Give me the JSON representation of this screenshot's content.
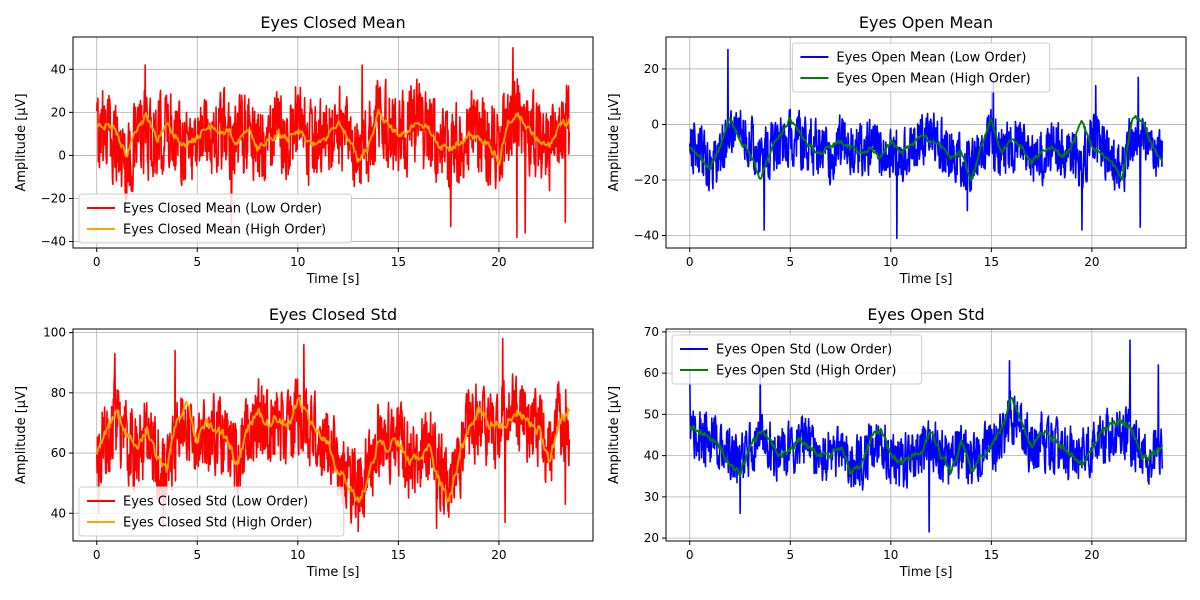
{
  "figure": {
    "background": "#ffffff",
    "grid_color": "#b0b0b0"
  },
  "chart_data": [
    {
      "id": "ec_mean",
      "type": "line",
      "title": "Eyes Closed Mean",
      "xlabel": "Time [s]",
      "ylabel": "Amplitude [µV]",
      "xlim": [
        -1.18,
        24.68
      ],
      "ylim": [
        -43,
        55
      ],
      "xticks": [
        0,
        5,
        10,
        15,
        20
      ],
      "yticks": [
        -40,
        -20,
        0,
        20,
        40
      ],
      "grid": true,
      "legend_position": "lower-left",
      "series": [
        {
          "name": "Eyes Closed Mean (Low Order)",
          "color": "#ff0000",
          "kind": "low",
          "x": [
            0,
            0.5,
            1,
            1.5,
            2,
            2.5,
            3,
            3.5,
            4,
            4.5,
            5,
            5.5,
            6,
            6.5,
            7,
            7.5,
            8,
            8.5,
            9,
            9.5,
            10,
            10.5,
            11,
            11.5,
            12,
            12.5,
            13,
            13.5,
            14,
            14.5,
            15,
            15.5,
            16,
            16.5,
            17,
            17.5,
            18,
            18.5,
            19,
            19.5,
            20,
            20.5,
            21,
            21.5,
            22,
            22.5,
            23,
            23.5
          ],
          "y": [
            10,
            12,
            6,
            -4,
            8,
            10,
            5,
            13,
            10,
            6,
            8,
            12,
            8,
            11,
            6,
            12,
            5,
            8,
            10,
            9,
            13,
            4,
            5,
            8,
            14,
            6,
            -5,
            5,
            18,
            12,
            10,
            12,
            14,
            12,
            5,
            -1,
            6,
            10,
            8,
            4,
            6,
            14,
            18,
            10,
            8,
            2,
            12,
            14
          ],
          "amp": 24,
          "extremes": [
            [
              0.3,
              30
            ],
            [
              2.4,
              42
            ],
            [
              6.7,
              -34
            ],
            [
              13.2,
              42
            ],
            [
              17.6,
              -33
            ],
            [
              20.7,
              50
            ],
            [
              20.9,
              -38
            ],
            [
              21.3,
              -36
            ],
            [
              23.3,
              -31
            ]
          ]
        },
        {
          "name": "Eyes Closed Mean (High Order)",
          "color": "#ffa500",
          "kind": "high",
          "x": [
            0,
            0.5,
            1,
            1.5,
            2,
            2.5,
            3,
            3.5,
            4,
            4.5,
            5,
            5.5,
            6,
            6.5,
            7,
            7.5,
            8,
            8.5,
            9,
            9.5,
            10,
            10.5,
            11,
            11.5,
            12,
            12.5,
            13,
            13.5,
            14,
            14.5,
            15,
            15.5,
            16,
            16.5,
            17,
            17.5,
            18,
            18.5,
            19,
            19.5,
            20,
            20.5,
            21,
            21.5,
            22,
            22.5,
            23,
            23.5
          ],
          "y": [
            12,
            15,
            10,
            0,
            12,
            18,
            7,
            14,
            8,
            5,
            8,
            14,
            10,
            12,
            6,
            12,
            3,
            7,
            10,
            8,
            12,
            6,
            4,
            10,
            16,
            8,
            -2,
            4,
            20,
            14,
            10,
            12,
            15,
            12,
            5,
            2,
            6,
            10,
            8,
            5,
            -3,
            16,
            18,
            12,
            6,
            4,
            14,
            16
          ],
          "amp": 3
        }
      ]
    },
    {
      "id": "eo_mean",
      "type": "line",
      "title": "Eyes Open Mean",
      "xlabel": "Time [s]",
      "ylabel": "Amplitude [µV]",
      "xlim": [
        -1.18,
        24.68
      ],
      "ylim": [
        -44.5,
        31.5
      ],
      "xticks": [
        0,
        5,
        10,
        15,
        20
      ],
      "yticks": [
        -40,
        -20,
        0,
        20
      ],
      "grid": true,
      "legend_position": "top-center",
      "series": [
        {
          "name": "Eyes Open Mean (Low Order)",
          "color": "#0000ff",
          "kind": "low",
          "x": [
            0,
            0.5,
            1,
            1.5,
            2,
            2.5,
            3,
            3.5,
            4,
            4.5,
            5,
            5.5,
            6,
            6.5,
            7,
            7.5,
            8,
            8.5,
            9,
            9.5,
            10,
            10.5,
            11,
            11.5,
            12,
            12.5,
            13,
            13.5,
            14,
            14.5,
            15,
            15.5,
            16,
            16.5,
            17,
            17.5,
            18,
            18.5,
            19,
            19.5,
            20,
            20.5,
            21,
            21.5,
            22,
            22.5,
            23,
            23.5
          ],
          "y": [
            -8,
            -10,
            -14,
            -12,
            -4,
            -2,
            -6,
            -12,
            -10,
            -6,
            -4,
            -6,
            -8,
            -10,
            -12,
            -6,
            -8,
            -10,
            -8,
            -10,
            -10,
            -12,
            -8,
            -6,
            -4,
            -8,
            -10,
            -12,
            -16,
            -10,
            -6,
            -10,
            -6,
            -8,
            -10,
            -12,
            -8,
            -10,
            -10,
            -14,
            -4,
            -10,
            -14,
            -18,
            -4,
            -6,
            -10,
            -12
          ],
          "amp": 12,
          "extremes": [
            [
              1.9,
              27
            ],
            [
              3.7,
              -38
            ],
            [
              10.3,
              -41
            ],
            [
              13.8,
              -31
            ],
            [
              15.1,
              16
            ],
            [
              19.5,
              -38
            ],
            [
              20.2,
              14
            ],
            [
              22.3,
              17
            ],
            [
              22.4,
              -37
            ]
          ]
        },
        {
          "name": "Eyes Open Mean (High Order)",
          "color": "#008000",
          "kind": "high",
          "x": [
            0,
            0.5,
            1,
            1.5,
            2,
            2.5,
            3,
            3.5,
            4,
            4.5,
            5,
            5.5,
            6,
            6.5,
            7,
            7.5,
            8,
            8.5,
            9,
            9.5,
            10,
            10.5,
            11,
            11.5,
            12,
            12.5,
            13,
            13.5,
            14,
            14.5,
            15,
            15.5,
            16,
            16.5,
            17,
            17.5,
            18,
            18.5,
            19,
            19.5,
            20,
            20.5,
            21,
            21.5,
            22,
            22.5,
            23,
            23.5
          ],
          "y": [
            -8,
            -12,
            -16,
            -8,
            2,
            -6,
            -10,
            -20,
            -10,
            -4,
            2,
            -4,
            -8,
            -10,
            -8,
            -6,
            -8,
            -10,
            -8,
            -12,
            -6,
            -10,
            -8,
            -4,
            -6,
            -8,
            -12,
            -10,
            -20,
            -8,
            2,
            -10,
            -6,
            -8,
            -14,
            -10,
            -8,
            -12,
            -8,
            2,
            -8,
            -10,
            -14,
            -20,
            2,
            2,
            -8,
            -14
          ],
          "amp": 1.5
        }
      ]
    },
    {
      "id": "ec_std",
      "type": "line",
      "title": "Eyes Closed Std",
      "xlabel": "Time [s]",
      "ylabel": "Amplitude [µV]",
      "xlim": [
        -1.18,
        24.68
      ],
      "ylim": [
        30.8,
        101.2
      ],
      "xticks": [
        0,
        5,
        10,
        15,
        20
      ],
      "yticks": [
        40,
        60,
        80,
        100
      ],
      "grid": true,
      "legend_position": "lower-left",
      "series": [
        {
          "name": "Eyes Closed Std (Low Order)",
          "color": "#ff0000",
          "kind": "low",
          "x": [
            0,
            0.5,
            1,
            1.5,
            2,
            2.5,
            3,
            3.5,
            4,
            4.5,
            5,
            5.5,
            6,
            6.5,
            7,
            7.5,
            8,
            8.5,
            9,
            9.5,
            10,
            10.5,
            11,
            11.5,
            12,
            12.5,
            13,
            13.5,
            14,
            14.5,
            15,
            15.5,
            16,
            16.5,
            17,
            17.5,
            18,
            18.5,
            19,
            19.5,
            20,
            20.5,
            21,
            21.5,
            22,
            22.5,
            23,
            23.5
          ],
          "y": [
            60,
            66,
            72,
            64,
            58,
            66,
            58,
            52,
            66,
            70,
            62,
            68,
            66,
            62,
            58,
            66,
            72,
            68,
            70,
            66,
            74,
            70,
            66,
            62,
            56,
            52,
            48,
            54,
            66,
            64,
            64,
            58,
            60,
            62,
            56,
            48,
            58,
            68,
            72,
            66,
            70,
            74,
            72,
            68,
            66,
            60,
            72,
            70
          ],
          "amp": 16,
          "extremes": [
            [
              0.1,
              40
            ],
            [
              0.9,
              93
            ],
            [
              3.3,
              36
            ],
            [
              3.9,
              94
            ],
            [
              10.3,
              96
            ],
            [
              13.0,
              34
            ],
            [
              16.9,
              35
            ],
            [
              20.2,
              98
            ],
            [
              20.3,
              37
            ],
            [
              23.3,
              43
            ]
          ]
        },
        {
          "name": "Eyes Closed Std (High Order)",
          "color": "#ffa500",
          "kind": "high",
          "x": [
            0,
            0.5,
            1,
            1.5,
            2,
            2.5,
            3,
            3.5,
            4,
            4.5,
            5,
            5.5,
            6,
            6.5,
            7,
            7.5,
            8,
            8.5,
            9,
            9.5,
            10,
            10.5,
            11,
            11.5,
            12,
            12.5,
            13,
            13.5,
            14,
            14.5,
            15,
            15.5,
            16,
            16.5,
            17,
            17.5,
            18,
            18.5,
            19,
            19.5,
            20,
            20.5,
            21,
            21.5,
            22,
            22.5,
            23,
            23.5
          ],
          "y": [
            60,
            68,
            74,
            66,
            60,
            68,
            58,
            54,
            72,
            76,
            64,
            70,
            68,
            64,
            56,
            68,
            74,
            70,
            72,
            68,
            78,
            72,
            68,
            64,
            54,
            50,
            44,
            52,
            64,
            62,
            64,
            58,
            58,
            62,
            52,
            44,
            58,
            68,
            74,
            70,
            68,
            72,
            74,
            70,
            68,
            56,
            70,
            74
          ],
          "amp": 3
        }
      ]
    },
    {
      "id": "eo_std",
      "type": "line",
      "title": "Eyes Open Std",
      "xlabel": "Time [s]",
      "ylabel": "Amplitude [µV]",
      "xlim": [
        -1.18,
        24.68
      ],
      "ylim": [
        19.3,
        70.7
      ],
      "xticks": [
        0,
        5,
        10,
        15,
        20
      ],
      "yticks": [
        20,
        30,
        40,
        50,
        60,
        70
      ],
      "grid": true,
      "legend_position": "top-left",
      "series": [
        {
          "name": "Eyes Open Std (Low Order)",
          "color": "#0000ff",
          "kind": "low",
          "x": [
            0,
            0.5,
            1,
            1.5,
            2,
            2.5,
            3,
            3.5,
            4,
            4.5,
            5,
            5.5,
            6,
            6.5,
            7,
            7.5,
            8,
            8.5,
            9,
            9.5,
            10,
            10.5,
            11,
            11.5,
            12,
            12.5,
            13,
            13.5,
            14,
            14.5,
            15,
            15.5,
            16,
            16.5,
            17,
            17.5,
            18,
            18.5,
            19,
            19.5,
            20,
            20.5,
            21,
            21.5,
            22,
            22.5,
            23,
            23.5
          ],
          "y": [
            46,
            44,
            44,
            42,
            40,
            38,
            42,
            44,
            42,
            40,
            42,
            44,
            42,
            40,
            40,
            42,
            38,
            38,
            42,
            44,
            40,
            38,
            40,
            40,
            44,
            40,
            38,
            42,
            38,
            40,
            42,
            44,
            50,
            46,
            42,
            44,
            42,
            42,
            40,
            40,
            42,
            44,
            46,
            46,
            44,
            40,
            40,
            42
          ],
          "amp": 8,
          "extremes": [
            [
              0.0,
              61
            ],
            [
              2.5,
              26
            ],
            [
              3.5,
              61
            ],
            [
              11.9,
              21.5
            ],
            [
              15.9,
              63
            ],
            [
              21.9,
              68
            ],
            [
              23.3,
              62
            ]
          ]
        },
        {
          "name": "Eyes Open Std (High Order)",
          "color": "#008000",
          "kind": "high",
          "x": [
            0,
            0.5,
            1,
            1.5,
            2,
            2.5,
            3,
            3.5,
            4,
            4.5,
            5,
            5.5,
            6,
            6.5,
            7,
            7.5,
            8,
            8.5,
            9,
            9.5,
            10,
            10.5,
            11,
            11.5,
            12,
            12.5,
            13,
            13.5,
            14,
            14.5,
            15,
            15.5,
            16,
            16.5,
            17,
            17.5,
            18,
            18.5,
            19,
            19.5,
            20,
            20.5,
            21,
            21.5,
            22,
            22.5,
            23,
            23.5
          ],
          "y": [
            47,
            46,
            44,
            42,
            38,
            36,
            42,
            46,
            44,
            40,
            42,
            44,
            42,
            40,
            40,
            42,
            36,
            38,
            44,
            46,
            40,
            38,
            40,
            40,
            46,
            40,
            36,
            44,
            36,
            40,
            42,
            46,
            54,
            48,
            42,
            46,
            44,
            42,
            40,
            38,
            42,
            46,
            48,
            48,
            46,
            40,
            40,
            42
          ],
          "amp": 1.5
        }
      ]
    }
  ]
}
